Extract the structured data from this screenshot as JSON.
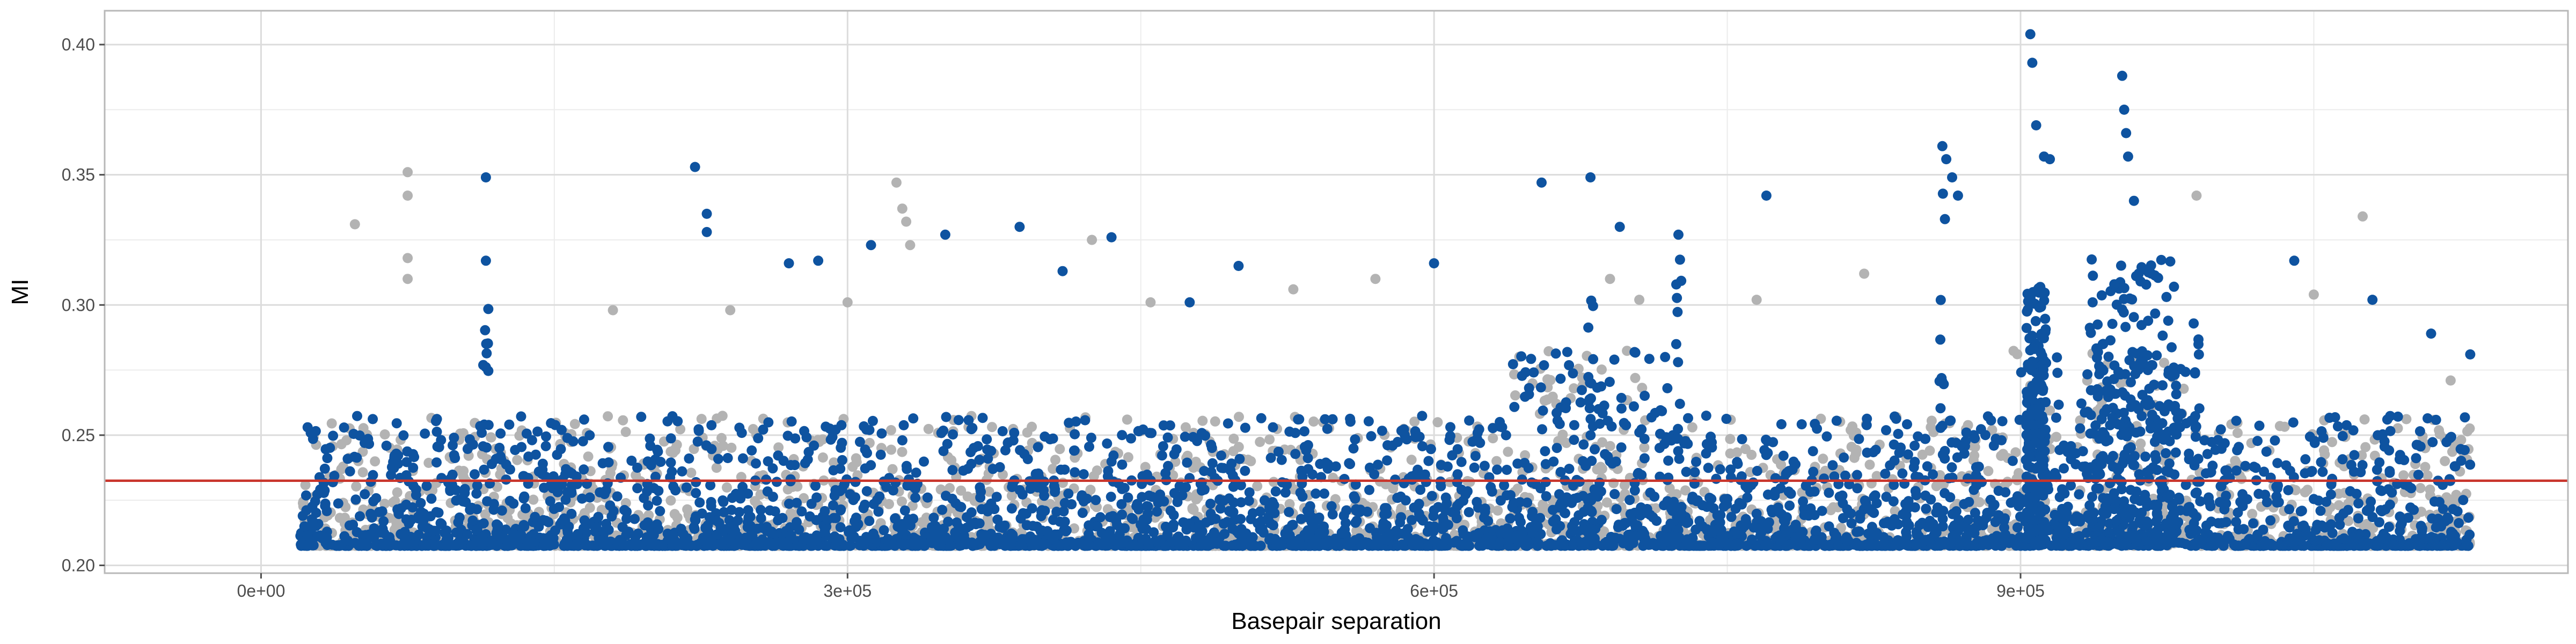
{
  "chart_data": {
    "type": "scatter",
    "title": "",
    "xlabel": "Basepair separation",
    "ylabel": "MI",
    "xlim": [
      -80000,
      1180000
    ],
    "ylim": [
      0.197,
      0.413
    ],
    "x_ticks": [
      0,
      300000,
      600000,
      900000
    ],
    "x_tick_labels": [
      "0e+00",
      "3e+05",
      "6e+05",
      "9e+05"
    ],
    "y_ticks": [
      0.2,
      0.25,
      0.3,
      0.35,
      0.4
    ],
    "y_tick_labels": [
      "0.20",
      "0.25",
      "0.30",
      "0.35",
      "0.40"
    ],
    "grid": true,
    "legend": "none",
    "point_range_x": [
      20000,
      1130000
    ],
    "reference_line": {
      "y": 0.2325,
      "color": "#c9352b"
    },
    "series": [
      {
        "color": "#b3b3b3",
        "highlights": [
          [
            75000,
            0.351
          ],
          [
            75000,
            0.342
          ],
          [
            75000,
            0.318
          ],
          [
            75000,
            0.31
          ],
          [
            48000,
            0.331
          ],
          [
            180000,
            0.298
          ],
          [
            240000,
            0.298
          ],
          [
            300000,
            0.301
          ],
          [
            325000,
            0.347
          ],
          [
            328000,
            0.337
          ],
          [
            330000,
            0.332
          ],
          [
            332000,
            0.323
          ],
          [
            425000,
            0.325
          ],
          [
            455000,
            0.301
          ],
          [
            528000,
            0.306
          ],
          [
            570000,
            0.31
          ],
          [
            690000,
            0.31
          ],
          [
            705000,
            0.302
          ],
          [
            765000,
            0.302
          ],
          [
            820000,
            0.312
          ],
          [
            990000,
            0.342
          ],
          [
            1050000,
            0.304
          ],
          [
            1075000,
            0.334
          ],
          [
            1120000,
            0.271
          ]
        ]
      },
      {
        "color": "#0e53a0",
        "highlights": [
          [
            115000,
            0.349
          ],
          [
            115000,
            0.317
          ],
          [
            222000,
            0.353
          ],
          [
            228000,
            0.335
          ],
          [
            228000,
            0.328
          ],
          [
            270000,
            0.316
          ],
          [
            285000,
            0.317
          ],
          [
            312000,
            0.323
          ],
          [
            350000,
            0.327
          ],
          [
            388000,
            0.33
          ],
          [
            410000,
            0.313
          ],
          [
            435000,
            0.326
          ],
          [
            475000,
            0.301
          ],
          [
            500000,
            0.315
          ],
          [
            600000,
            0.316
          ],
          [
            655000,
            0.347
          ],
          [
            680000,
            0.349
          ],
          [
            695000,
            0.33
          ],
          [
            725000,
            0.327
          ],
          [
            770000,
            0.342
          ],
          [
            860000,
            0.361
          ],
          [
            862000,
            0.356
          ],
          [
            865000,
            0.349
          ],
          [
            868000,
            0.342
          ],
          [
            905000,
            0.404
          ],
          [
            906000,
            0.393
          ],
          [
            908000,
            0.369
          ],
          [
            912000,
            0.357
          ],
          [
            915000,
            0.356
          ],
          [
            952000,
            0.388
          ],
          [
            953000,
            0.375
          ],
          [
            954000,
            0.366
          ],
          [
            955000,
            0.357
          ],
          [
            958000,
            0.34
          ],
          [
            1040000,
            0.317
          ],
          [
            1080000,
            0.302
          ],
          [
            1110000,
            0.289
          ],
          [
            1130000,
            0.281
          ]
        ]
      }
    ]
  }
}
